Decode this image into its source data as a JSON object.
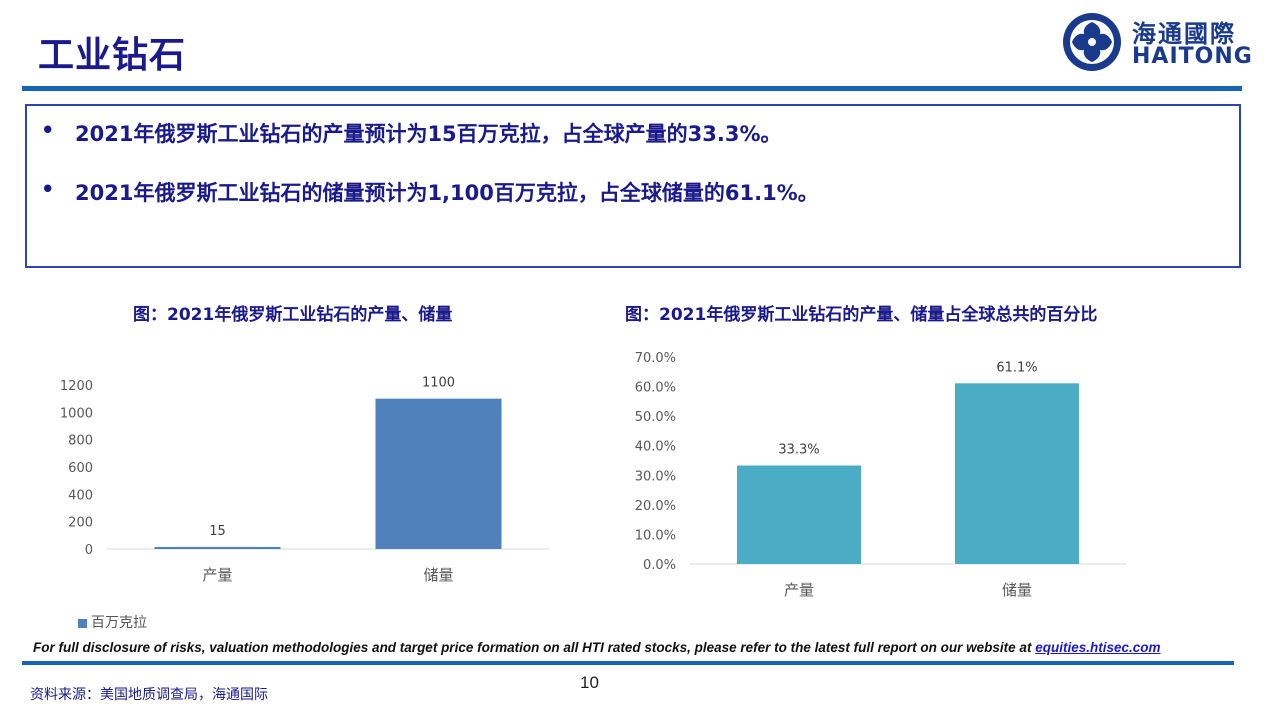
{
  "header": {
    "title": "工业钻石",
    "logo_cn": "海通國際",
    "logo_en": "HAITONG"
  },
  "bullets": [
    "2021年俄罗斯工业钻石的产量预计为15百万克拉，占全球产量的33.3%。",
    "2021年俄罗斯工业钻石的储量预计为1,100百万克拉，占全球储量的61.1%。"
  ],
  "bullet_symbol": "•",
  "chart_data": [
    {
      "type": "bar",
      "title": "图：2021年俄罗斯工业钻石的产量、储量",
      "categories": [
        "产量",
        "储量"
      ],
      "series": [
        {
          "name": "百万克拉",
          "values": [
            15,
            1100
          ]
        }
      ],
      "data_labels": [
        "15",
        "1100"
      ],
      "ylim": [
        0,
        1200
      ],
      "yticks": [
        "0",
        "200",
        "400",
        "600",
        "800",
        "1000",
        "1200"
      ],
      "grid": false,
      "legend": "bottom-left",
      "color": "#4f81bd"
    },
    {
      "type": "bar",
      "title": "图：2021年俄罗斯工业钻石的产量、储量占全球总共的百分比",
      "categories": [
        "产量",
        "储量"
      ],
      "values": [
        33.3,
        61.1
      ],
      "data_labels": [
        "33.3%",
        "61.1%"
      ],
      "ylim": [
        0,
        70
      ],
      "yticks": [
        "0.0%",
        "10.0%",
        "20.0%",
        "30.0%",
        "40.0%",
        "50.0%",
        "60.0%",
        "70.0%"
      ],
      "grid": false,
      "color": "#4bacc6"
    }
  ],
  "footer": {
    "disclaimer": "For full disclosure of risks, valuation methodologies and target price formation on all HTI rated stocks, please refer to the latest full report on our website at ",
    "link": "equities.htisec.com",
    "page": "10",
    "source": "资料来源：美国地质调查局，海通国际"
  },
  "colors": {
    "brand": "#1a1a8c",
    "bar_blue": "#4f81bd",
    "bar_teal": "#4bacc6",
    "rule": "#1565b5"
  }
}
